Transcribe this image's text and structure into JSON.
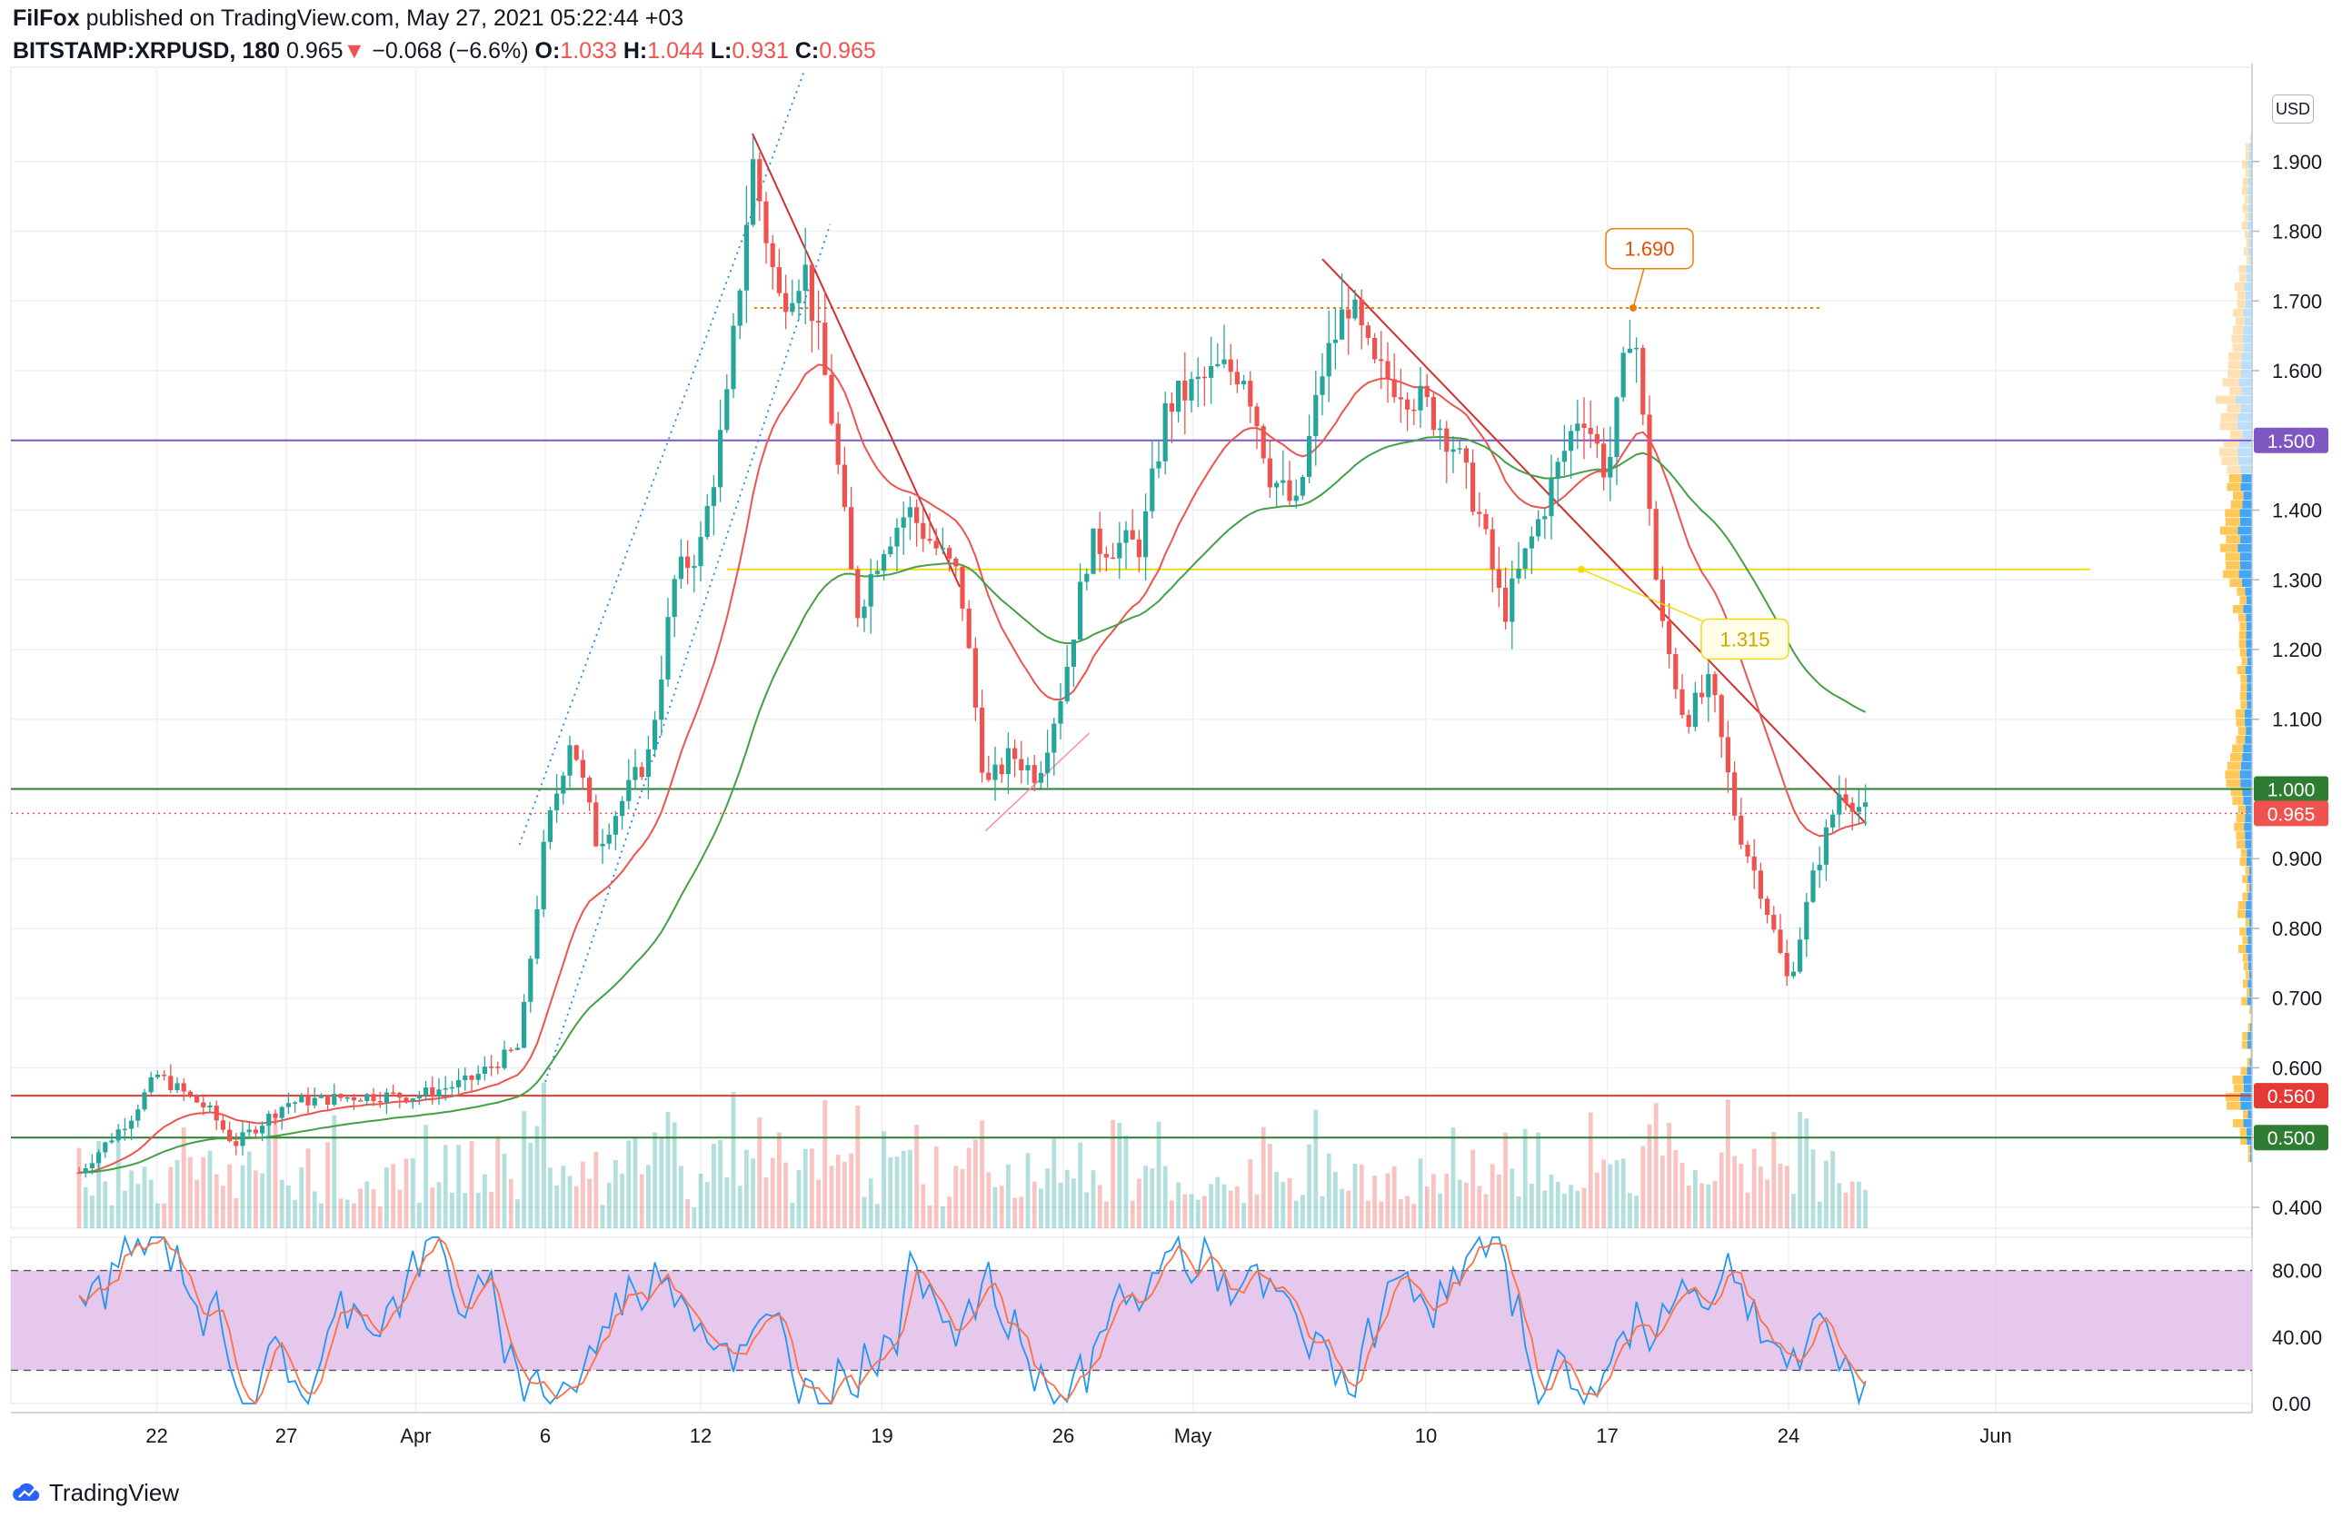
{
  "header": {
    "author": "FilFox",
    "published_text": "published on TradingView.com, May 27, 2021 05:22:44 +03",
    "symbol": "BITSTAMP:XRPUSD, 180",
    "last": "0.965",
    "arrow": "▼",
    "change": "−0.068 (−6.6%)",
    "o_label": "O:",
    "o_val": "1.033",
    "h_label": "H:",
    "h_val": "1.044",
    "l_label": "L:",
    "l_val": "0.931",
    "c_label": "C:",
    "c_val": "0.965"
  },
  "currency_button": "USD",
  "branding": "TradingView",
  "colors": {
    "up": "#26a69a",
    "down": "#ef5350",
    "ema_fast": "#ef5350",
    "ema_slow": "#43a047",
    "purple_level": "#7e57c2",
    "green_level": "#2e7d32",
    "red_level": "#e53935",
    "yellow_level": "#f5d90a",
    "orange_level": "#f57c00",
    "stoch_band": "#e1bee7"
  },
  "chart_data": {
    "type": "candlestick",
    "symbol": "BITSTAMP:XRPUSD",
    "interval": "180",
    "currency": "USD",
    "y_range": [
      0.37,
      2.03
    ],
    "y_ticks": [
      "1.900",
      "1.800",
      "1.700",
      "1.600",
      "1.500",
      "1.400",
      "1.300",
      "1.200",
      "1.100",
      "1.000",
      "0.900",
      "0.800",
      "0.700",
      "0.600",
      "0.500",
      "0.400"
    ],
    "x_ticks": [
      "22",
      "27",
      "Apr",
      "6",
      "12",
      "19",
      "26",
      "May",
      "10",
      "17",
      "24",
      "Jun"
    ],
    "price_path": [
      {
        "d": "Mar 19",
        "p": 0.45
      },
      {
        "d": "Mar 21",
        "p": 0.53
      },
      {
        "d": "Mar 22",
        "p": 0.59
      },
      {
        "d": "Mar 24",
        "p": 0.54
      },
      {
        "d": "Mar 25",
        "p": 0.49
      },
      {
        "d": "Mar 27",
        "p": 0.55
      },
      {
        "d": "Mar 30",
        "p": 0.56
      },
      {
        "d": "Apr 1",
        "p": 0.56
      },
      {
        "d": "Apr 3",
        "p": 0.58
      },
      {
        "d": "Apr 5",
        "p": 0.63
      },
      {
        "d": "Apr 6",
        "p": 0.93
      },
      {
        "d": "Apr 7",
        "p": 1.08
      },
      {
        "d": "Apr 8",
        "p": 0.92
      },
      {
        "d": "Apr 10",
        "p": 1.05
      },
      {
        "d": "Apr 11",
        "p": 1.3
      },
      {
        "d": "Apr 12",
        "p": 1.35
      },
      {
        "d": "Apr 13",
        "p": 1.55
      },
      {
        "d": "Apr 14",
        "p": 1.9
      },
      {
        "d": "Apr 15",
        "p": 1.7
      },
      {
        "d": "Apr 16",
        "p": 1.75
      },
      {
        "d": "Apr 17",
        "p": 1.55
      },
      {
        "d": "Apr 18",
        "p": 1.25
      },
      {
        "d": "Apr 19",
        "p": 1.35
      },
      {
        "d": "Apr 20",
        "p": 1.4
      },
      {
        "d": "Apr 22",
        "p": 1.3
      },
      {
        "d": "Apr 23",
        "p": 1.0
      },
      {
        "d": "Apr 24",
        "p": 1.05
      },
      {
        "d": "Apr 25",
        "p": 1.02
      },
      {
        "d": "Apr 26",
        "p": 1.15
      },
      {
        "d": "Apr 27",
        "p": 1.35
      },
      {
        "d": "Apr 29",
        "p": 1.35
      },
      {
        "d": "Apr 30",
        "p": 1.55
      },
      {
        "d": "May 2",
        "p": 1.6
      },
      {
        "d": "May 3",
        "p": 1.6
      },
      {
        "d": "May 4",
        "p": 1.45
      },
      {
        "d": "May 5",
        "p": 1.4
      },
      {
        "d": "May 6",
        "p": 1.6
      },
      {
        "d": "May 7",
        "p": 1.7
      },
      {
        "d": "May 8",
        "p": 1.6
      },
      {
        "d": "May 9",
        "p": 1.58
      },
      {
        "d": "May 10",
        "p": 1.55
      },
      {
        "d": "May 11",
        "p": 1.5
      },
      {
        "d": "May 12",
        "p": 1.4
      },
      {
        "d": "May 13",
        "p": 1.25
      },
      {
        "d": "May 14",
        "p": 1.35
      },
      {
        "d": "May 15",
        "p": 1.45
      },
      {
        "d": "May 16",
        "p": 1.55
      },
      {
        "d": "May 17",
        "p": 1.45
      },
      {
        "d": "May 18",
        "p": 1.69
      },
      {
        "d": "May 19",
        "p": 1.25
      },
      {
        "d": "May 20",
        "p": 1.1
      },
      {
        "d": "May 21",
        "p": 1.15
      },
      {
        "d": "May 22",
        "p": 0.95
      },
      {
        "d": "May 23",
        "p": 0.85
      },
      {
        "d": "May 24",
        "p": 0.72
      },
      {
        "d": "May 25",
        "p": 0.88
      },
      {
        "d": "May 26",
        "p": 1.0
      },
      {
        "d": "May 27",
        "p": 0.965
      }
    ],
    "levels": [
      {
        "name": "purple",
        "value": 1.5,
        "label": "1.500"
      },
      {
        "name": "yellow",
        "value": 1.315,
        "label": "1.315"
      },
      {
        "name": "green",
        "value": 1.0,
        "label": "1.000"
      },
      {
        "name": "red",
        "value": 0.56,
        "label": "0.560"
      },
      {
        "name": "green2",
        "value": 0.5,
        "label": "0.500"
      },
      {
        "name": "orange",
        "value": 1.69,
        "label": "1.690"
      }
    ],
    "last_price": {
      "value": 0.965,
      "label": "0.965"
    },
    "oscillator": {
      "type": "stochastic",
      "y_ticks": [
        "80.00",
        "40.00",
        "0.00"
      ],
      "upper_band": 80,
      "lower_band": 20
    }
  }
}
